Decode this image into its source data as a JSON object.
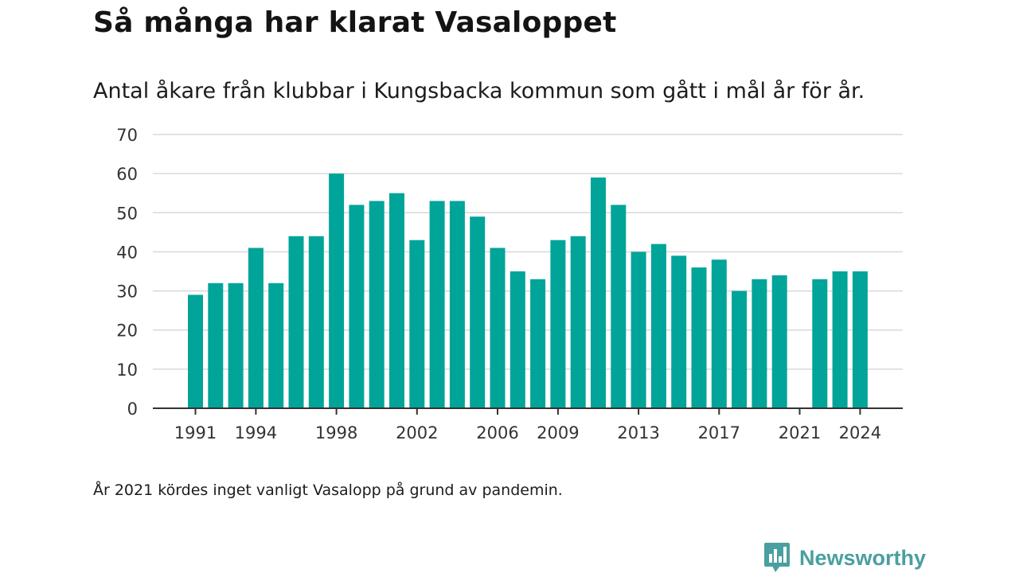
{
  "title": "Så många har klarat Vasaloppet",
  "subtitle": "Antal åkare från klubbar i Kungsbacka kommun som gått i mål år för år.",
  "note": "År 2021 kördes inget vanligt Vasalopp på grund av pandemin.",
  "brand": {
    "name": "Newsworthy",
    "icon": "newsworthy-logo-icon"
  },
  "colors": {
    "bar": "#00a499",
    "grid": "#d9d9d9",
    "axis": "#333333",
    "brand": "#4a9fa0"
  },
  "chart_data": {
    "type": "bar",
    "title": "Så många har klarat Vasaloppet",
    "xlabel": "",
    "ylabel": "",
    "categories": [
      "1991",
      "1992",
      "1993",
      "1994",
      "1995",
      "1996",
      "1997",
      "1998",
      "1999",
      "2000",
      "2001",
      "2002",
      "2003",
      "2004",
      "2005",
      "2006",
      "2007",
      "2008",
      "2009",
      "2010",
      "2011",
      "2012",
      "2013",
      "2014",
      "2015",
      "2016",
      "2017",
      "2018",
      "2019",
      "2020",
      "2021",
      "2022",
      "2023",
      "2024"
    ],
    "values": [
      29,
      32,
      32,
      41,
      32,
      44,
      44,
      60,
      52,
      53,
      55,
      43,
      53,
      53,
      49,
      41,
      35,
      33,
      43,
      44,
      59,
      52,
      40,
      42,
      39,
      36,
      38,
      30,
      33,
      34,
      null,
      33,
      35,
      35
    ],
    "x_tick_labels": [
      "1991",
      "1994",
      "1998",
      "2002",
      "2006",
      "2009",
      "2013",
      "2017",
      "2021",
      "2024"
    ],
    "y_ticks": [
      0,
      10,
      20,
      30,
      40,
      50,
      60,
      70
    ],
    "ylim": [
      0,
      70
    ],
    "grid": true,
    "legend": "none"
  }
}
